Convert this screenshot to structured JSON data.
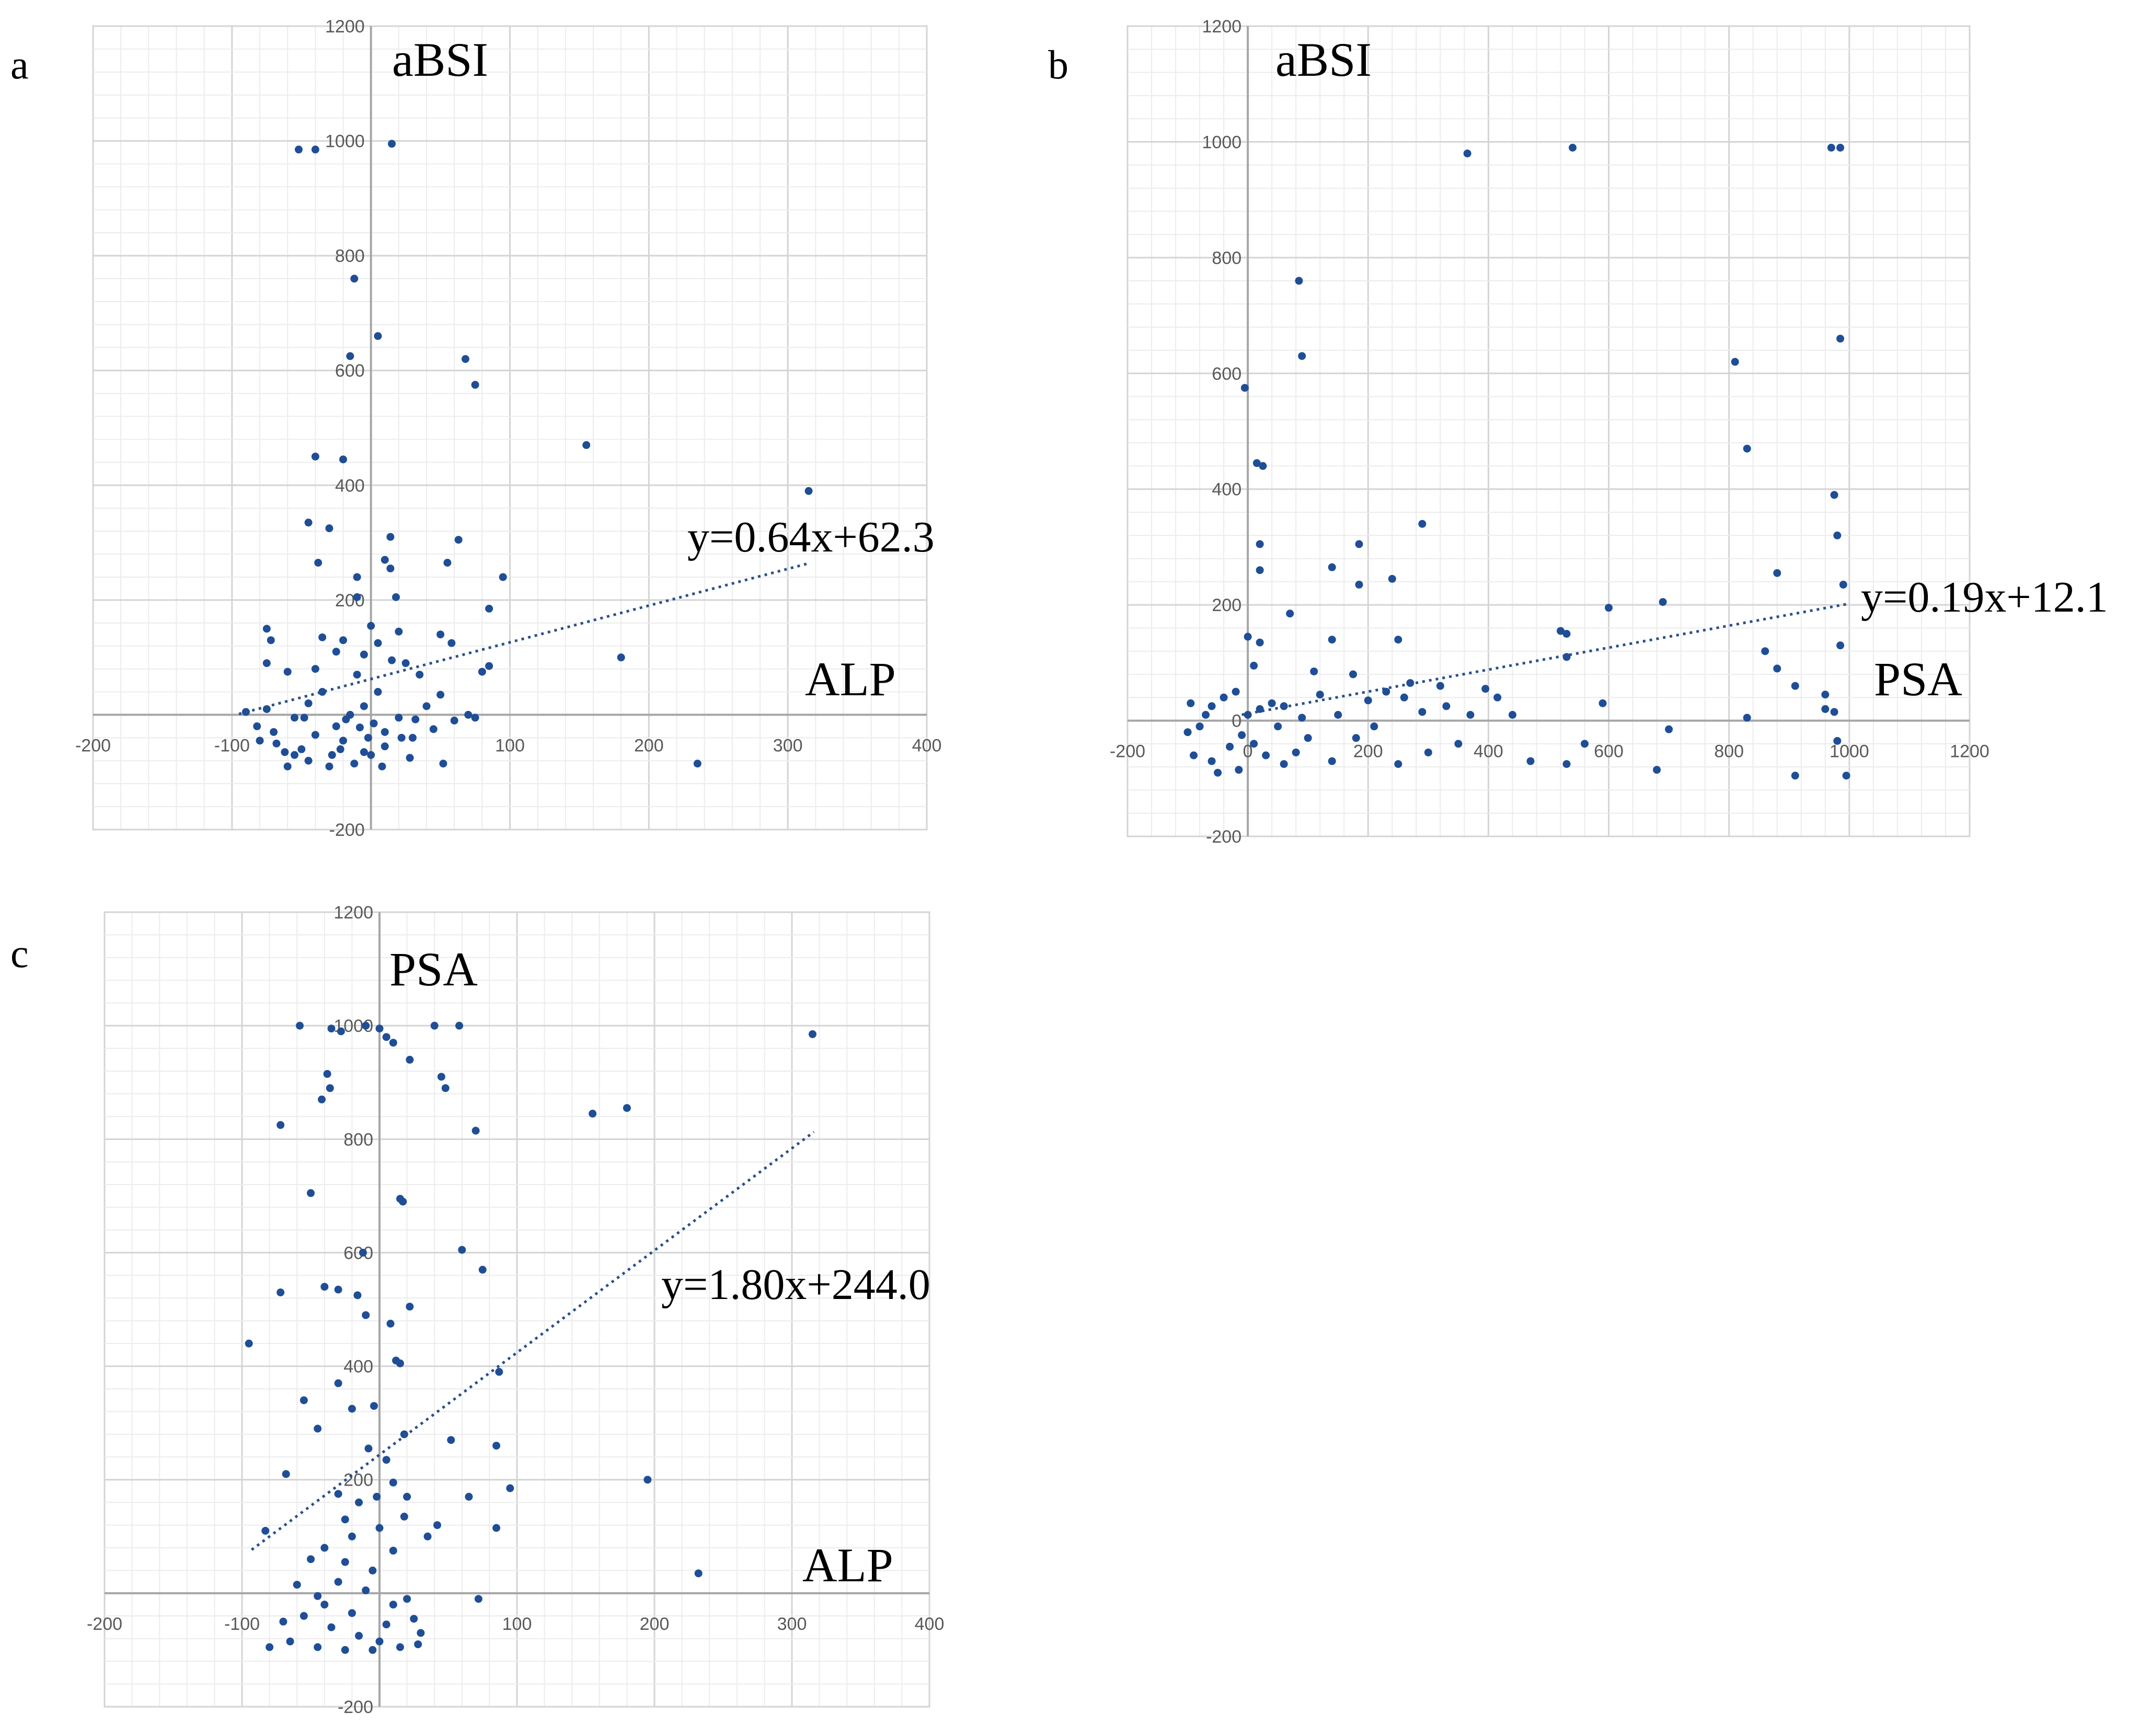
{
  "colors": {
    "marker": "#1f4e96",
    "trend": "#2a4f8a",
    "grid_major": "#d4d4d4",
    "grid_minor": "#ececec",
    "axis": "#a6a6a6"
  },
  "chart_data": [
    {
      "type": "scatter",
      "panel_label": "a",
      "title": "",
      "xlabel": "ALP",
      "ylabel": "aBSI",
      "xlim": [
        -200,
        400
      ],
      "ylim": [
        -200,
        1200
      ],
      "xticks": [
        -200,
        -100,
        100,
        200,
        300,
        400
      ],
      "yticks": [
        -200,
        200,
        400,
        600,
        800,
        1000,
        1200
      ],
      "grid": true,
      "trendline": {
        "label": "y=0.64x+62.3",
        "slope": 0.64,
        "intercept": 62.3,
        "x_range": [
          -95,
          315
        ]
      },
      "points": [
        [
          -52,
          985
        ],
        [
          -40,
          985
        ],
        [
          15,
          995
        ],
        [
          -12,
          760
        ],
        [
          5,
          660
        ],
        [
          -15,
          625
        ],
        [
          68,
          620
        ],
        [
          75,
          575
        ],
        [
          -40,
          450
        ],
        [
          -20,
          445
        ],
        [
          155,
          470
        ],
        [
          315,
          390
        ],
        [
          -45,
          335
        ],
        [
          -30,
          325
        ],
        [
          -38,
          265
        ],
        [
          -10,
          240
        ],
        [
          14,
          310
        ],
        [
          10,
          270
        ],
        [
          14,
          255
        ],
        [
          18,
          205
        ],
        [
          63,
          305
        ],
        [
          -10,
          205
        ],
        [
          55,
          265
        ],
        [
          95,
          240
        ],
        [
          85,
          185
        ],
        [
          -75,
          150
        ],
        [
          -72,
          130
        ],
        [
          0,
          155
        ],
        [
          -35,
          135
        ],
        [
          -20,
          130
        ],
        [
          5,
          125
        ],
        [
          20,
          145
        ],
        [
          -25,
          110
        ],
        [
          -5,
          105
        ],
        [
          15,
          95
        ],
        [
          50,
          140
        ],
        [
          58,
          125
        ],
        [
          -75,
          90
        ],
        [
          -60,
          75
        ],
        [
          -40,
          80
        ],
        [
          -10,
          70
        ],
        [
          25,
          90
        ],
        [
          35,
          70
        ],
        [
          80,
          75
        ],
        [
          85,
          85
        ],
        [
          180,
          100
        ],
        [
          -70,
          -30
        ],
        [
          -55,
          -5
        ],
        [
          -45,
          20
        ],
        [
          -35,
          40
        ],
        [
          -25,
          -20
        ],
        [
          -15,
          0
        ],
        [
          -5,
          15
        ],
        [
          5,
          40
        ],
        [
          10,
          -30
        ],
        [
          20,
          -5
        ],
        [
          30,
          -40
        ],
        [
          40,
          15
        ],
        [
          50,
          35
        ],
        [
          60,
          -10
        ],
        [
          70,
          0
        ],
        [
          75,
          -5
        ],
        [
          -80,
          -45
        ],
        [
          -62,
          -65
        ],
        [
          -45,
          -80
        ],
        [
          -28,
          -70
        ],
        [
          -12,
          -85
        ],
        [
          0,
          -70
        ],
        [
          10,
          -55
        ],
        [
          -90,
          5
        ],
        [
          -82,
          -20
        ],
        [
          -50,
          -60
        ],
        [
          -40,
          -35
        ],
        [
          -20,
          -45
        ],
        [
          -5,
          -65
        ],
        [
          8,
          -90
        ],
        [
          -30,
          -90
        ],
        [
          -60,
          -90
        ],
        [
          22,
          -40
        ],
        [
          45,
          -25
        ],
        [
          52,
          -85
        ],
        [
          -68,
          -50
        ],
        [
          2,
          -15
        ],
        [
          -18,
          -8
        ],
        [
          32,
          -8
        ],
        [
          -75,
          10
        ],
        [
          -2,
          -40
        ],
        [
          235,
          -85
        ],
        [
          -48,
          -5
        ],
        [
          -8,
          -22
        ],
        [
          -55,
          -70
        ],
        [
          28,
          -75
        ],
        [
          -22,
          -60
        ]
      ]
    },
    {
      "type": "scatter",
      "panel_label": "b",
      "title": "",
      "xlabel": "PSA",
      "ylabel": "aBSI",
      "xlim": [
        -200,
        1200
      ],
      "ylim": [
        -200,
        1200
      ],
      "xticks": [
        -200,
        0,
        200,
        400,
        600,
        800,
        1000,
        1200
      ],
      "yticks": [
        -200,
        0,
        200,
        400,
        600,
        800,
        1000,
        1200
      ],
      "grid": true,
      "trendline": {
        "label": "y=0.19x+12.1",
        "slope": 0.19,
        "intercept": 12.1,
        "x_range": [
          -10,
          995
        ]
      },
      "points": [
        [
          365,
          980
        ],
        [
          540,
          990
        ],
        [
          970,
          990
        ],
        [
          985,
          990
        ],
        [
          85,
          760
        ],
        [
          90,
          630
        ],
        [
          -5,
          575
        ],
        [
          985,
          660
        ],
        [
          810,
          620
        ],
        [
          830,
          470
        ],
        [
          15,
          445
        ],
        [
          25,
          440
        ],
        [
          975,
          390
        ],
        [
          290,
          340
        ],
        [
          980,
          320
        ],
        [
          20,
          305
        ],
        [
          185,
          305
        ],
        [
          140,
          265
        ],
        [
          20,
          260
        ],
        [
          240,
          245
        ],
        [
          185,
          235
        ],
        [
          880,
          255
        ],
        [
          990,
          235
        ],
        [
          70,
          185
        ],
        [
          600,
          195
        ],
        [
          690,
          205
        ],
        [
          860,
          120
        ],
        [
          985,
          130
        ],
        [
          0,
          145
        ],
        [
          20,
          135
        ],
        [
          140,
          140
        ],
        [
          250,
          140
        ],
        [
          520,
          155
        ],
        [
          530,
          150
        ],
        [
          10,
          95
        ],
        [
          110,
          85
        ],
        [
          175,
          80
        ],
        [
          270,
          65
        ],
        [
          320,
          60
        ],
        [
          395,
          55
        ],
        [
          530,
          110
        ],
        [
          880,
          90
        ],
        [
          910,
          60
        ],
        [
          590,
          30
        ],
        [
          415,
          40
        ],
        [
          440,
          10
        ],
        [
          20,
          20
        ],
        [
          40,
          30
        ],
        [
          60,
          25
        ],
        [
          90,
          5
        ],
        [
          120,
          45
        ],
        [
          150,
          10
        ],
        [
          200,
          35
        ],
        [
          230,
          50
        ],
        [
          260,
          40
        ],
        [
          290,
          15
        ],
        [
          330,
          25
        ],
        [
          370,
          10
        ],
        [
          -20,
          50
        ],
        [
          -40,
          40
        ],
        [
          -60,
          25
        ],
        [
          -80,
          -10
        ],
        [
          -100,
          -20
        ],
        [
          -60,
          -70
        ],
        [
          -30,
          -45
        ],
        [
          -10,
          -25
        ],
        [
          10,
          -40
        ],
        [
          30,
          -60
        ],
        [
          60,
          -75
        ],
        [
          -90,
          -60
        ],
        [
          -50,
          -90
        ],
        [
          -15,
          -85
        ],
        [
          80,
          -55
        ],
        [
          140,
          -70
        ],
        [
          180,
          -30
        ],
        [
          300,
          -55
        ],
        [
          350,
          -40
        ],
        [
          470,
          -70
        ],
        [
          530,
          -75
        ],
        [
          560,
          -40
        ],
        [
          700,
          -15
        ],
        [
          980,
          -35
        ],
        [
          995,
          -95
        ],
        [
          910,
          -95
        ],
        [
          830,
          5
        ],
        [
          960,
          20
        ],
        [
          975,
          15
        ],
        [
          680,
          -85
        ],
        [
          960,
          45
        ],
        [
          -95,
          30
        ],
        [
          -70,
          10
        ],
        [
          0,
          10
        ],
        [
          50,
          -10
        ],
        [
          100,
          -30
        ],
        [
          210,
          -10
        ],
        [
          250,
          -75
        ]
      ]
    },
    {
      "type": "scatter",
      "panel_label": "c",
      "title": "",
      "xlabel": "ALP",
      "ylabel": "PSA",
      "xlim": [
        -200,
        400
      ],
      "ylim": [
        -200,
        1200
      ],
      "xticks": [
        -200,
        -100,
        100,
        200,
        300,
        400
      ],
      "yticks": [
        -200,
        200,
        400,
        600,
        800,
        1000,
        1200
      ],
      "grid": true,
      "trendline": {
        "label": "y=1.80x+244.0",
        "slope": 1.8,
        "intercept": 244.0,
        "x_range": [
          -93,
          316
        ]
      },
      "points": [
        [
          -58,
          1000
        ],
        [
          -35,
          995
        ],
        [
          -28,
          990
        ],
        [
          -10,
          1000
        ],
        [
          0,
          995
        ],
        [
          5,
          980
        ],
        [
          10,
          970
        ],
        [
          22,
          940
        ],
        [
          40,
          1000
        ],
        [
          58,
          1000
        ],
        [
          45,
          910
        ],
        [
          48,
          890
        ],
        [
          -38,
          915
        ],
        [
          -42,
          870
        ],
        [
          -36,
          890
        ],
        [
          -72,
          825
        ],
        [
          -50,
          705
        ],
        [
          -12,
          600
        ],
        [
          15,
          695
        ],
        [
          17,
          690
        ],
        [
          -72,
          530
        ],
        [
          -40,
          540
        ],
        [
          -30,
          535
        ],
        [
          -16,
          525
        ],
        [
          -10,
          490
        ],
        [
          22,
          505
        ],
        [
          8,
          475
        ],
        [
          12,
          410
        ],
        [
          15,
          405
        ],
        [
          -4,
          330
        ],
        [
          -55,
          340
        ],
        [
          -45,
          290
        ],
        [
          -68,
          210
        ],
        [
          -30,
          370
        ],
        [
          -20,
          325
        ],
        [
          -8,
          255
        ],
        [
          5,
          235
        ],
        [
          18,
          280
        ],
        [
          -30,
          175
        ],
        [
          -15,
          160
        ],
        [
          -2,
          170
        ],
        [
          10,
          195
        ],
        [
          20,
          170
        ],
        [
          -25,
          130
        ],
        [
          0,
          115
        ],
        [
          18,
          135
        ],
        [
          -40,
          80
        ],
        [
          -20,
          100
        ],
        [
          10,
          75
        ],
        [
          35,
          100
        ],
        [
          60,
          605
        ],
        [
          75,
          570
        ],
        [
          65,
          170
        ],
        [
          70,
          815
        ],
        [
          155,
          845
        ],
        [
          180,
          855
        ],
        [
          315,
          985
        ],
        [
          195,
          200
        ],
        [
          85,
          260
        ],
        [
          95,
          185
        ],
        [
          52,
          270
        ],
        [
          87,
          390
        ],
        [
          85,
          115
        ],
        [
          42,
          120
        ],
        [
          -83,
          110
        ],
        [
          -95,
          440
        ],
        [
          72,
          -10
        ],
        [
          232,
          35
        ],
        [
          -60,
          15
        ],
        [
          -45,
          -5
        ],
        [
          -30,
          20
        ],
        [
          -10,
          5
        ],
        [
          10,
          -20
        ],
        [
          25,
          -45
        ],
        [
          -55,
          -40
        ],
        [
          -35,
          -60
        ],
        [
          -15,
          -75
        ],
        [
          0,
          -85
        ],
        [
          15,
          -95
        ],
        [
          -80,
          -95
        ],
        [
          -65,
          -85
        ],
        [
          -45,
          -95
        ],
        [
          -25,
          -100
        ],
        [
          -5,
          -100
        ],
        [
          30,
          -70
        ],
        [
          -70,
          -50
        ],
        [
          -40,
          -20
        ],
        [
          -20,
          -35
        ],
        [
          5,
          -55
        ],
        [
          20,
          -10
        ],
        [
          -5,
          40
        ],
        [
          -50,
          60
        ],
        [
          -25,
          55
        ],
        [
          28,
          -90
        ]
      ]
    }
  ]
}
